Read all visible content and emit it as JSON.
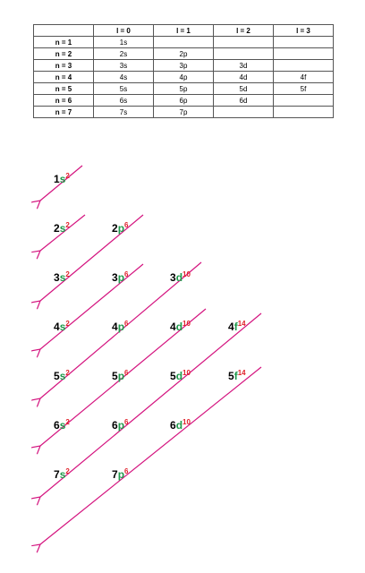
{
  "table": {
    "header": [
      null,
      "l = 0",
      "l = 1",
      "l = 2",
      "l = 3"
    ],
    "rows": [
      [
        "n = 1",
        "1s",
        null,
        null,
        null
      ],
      [
        "n = 2",
        "2s",
        "2p",
        null,
        null
      ],
      [
        "n = 3",
        "3s",
        "3p",
        "3d",
        null
      ],
      [
        "n = 4",
        "4s",
        "4p",
        "4d",
        "4f"
      ],
      [
        "n = 5",
        "5s",
        "5p",
        "5d",
        "5f"
      ],
      [
        "n = 6",
        "6s",
        "6p",
        "6d",
        null
      ],
      [
        "n = 7",
        "7s",
        "7p",
        null,
        null
      ]
    ]
  },
  "diagram": {
    "rows": [
      [
        {
          "n": "1",
          "l": "s",
          "e": "2"
        }
      ],
      [
        {
          "n": "2",
          "l": "s",
          "e": "2"
        },
        {
          "n": "2",
          "l": "p",
          "e": "6"
        }
      ],
      [
        {
          "n": "3",
          "l": "s",
          "e": "2"
        },
        {
          "n": "3",
          "l": "p",
          "e": "6"
        },
        {
          "n": "3",
          "l": "d",
          "e": "10"
        }
      ],
      [
        {
          "n": "4",
          "l": "s",
          "e": "2"
        },
        {
          "n": "4",
          "l": "p",
          "e": "6"
        },
        {
          "n": "4",
          "l": "d",
          "e": "10"
        },
        {
          "n": "4",
          "l": "f",
          "e": "14"
        }
      ],
      [
        {
          "n": "5",
          "l": "s",
          "e": "2"
        },
        {
          "n": "5",
          "l": "p",
          "e": "6"
        },
        {
          "n": "5",
          "l": "d",
          "e": "10"
        },
        {
          "n": "5",
          "l": "f",
          "e": "14"
        }
      ],
      [
        {
          "n": "6",
          "l": "s",
          "e": "2"
        },
        {
          "n": "6",
          "l": "p",
          "e": "6"
        },
        {
          "n": "6",
          "l": "d",
          "e": "10"
        }
      ],
      [
        {
          "n": "7",
          "l": "s",
          "e": "2"
        },
        {
          "n": "7",
          "l": "p",
          "e": "6"
        }
      ]
    ]
  }
}
